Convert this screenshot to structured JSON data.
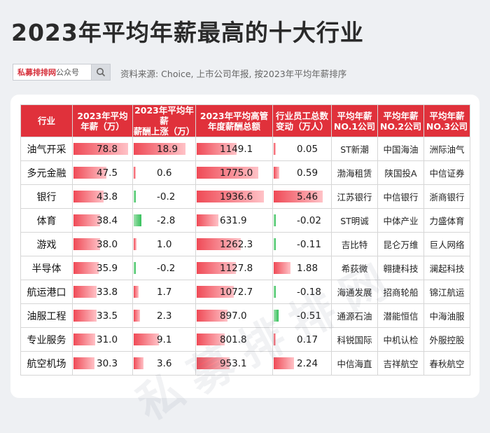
{
  "title": "2023年平均年薪最高的十大行业",
  "search": {
    "brand": "私募排排网",
    "suffix": "公众号"
  },
  "source": "资料来源: Choice, 上市公司年报, 按2023年平均年薪排序",
  "watermark": "私募排排网",
  "headers": [
    [
      "行业"
    ],
    [
      "2023年平均",
      "年薪（万）"
    ],
    [
      "2023年平均年薪",
      "薪酬上涨（万）"
    ],
    [
      "2023年平均高管",
      "年度薪酬总额"
    ],
    [
      "行业员工总数",
      "变动（万人）"
    ],
    [
      "平均年薪",
      "NO.1公司"
    ],
    [
      "平均年薪",
      "NO.2公司"
    ],
    [
      "平均年薪",
      "NO.3公司"
    ]
  ],
  "rows": [
    {
      "industry": "油气开采",
      "salary": "78.8",
      "rise": "18.9",
      "exec": "1149.1",
      "staff": "0.05",
      "no1": "ST新潮",
      "no2": "中国海油",
      "no3": "洲际油气"
    },
    {
      "industry": "多元金融",
      "salary": "47.5",
      "rise": "0.6",
      "exec": "1775.0",
      "staff": "0.59",
      "no1": "渤海租赁",
      "no2": "陕国投A",
      "no3": "中信证券"
    },
    {
      "industry": "银行",
      "salary": "43.8",
      "rise": "-0.2",
      "exec": "1936.6",
      "staff": "5.46",
      "no1": "江苏银行",
      "no2": "中信银行",
      "no3": "浙商银行"
    },
    {
      "industry": "体育",
      "salary": "38.4",
      "rise": "-2.8",
      "exec": "631.9",
      "staff": "-0.02",
      "no1": "ST明诚",
      "no2": "中体产业",
      "no3": "力盛体育"
    },
    {
      "industry": "游戏",
      "salary": "38.0",
      "rise": "1.0",
      "exec": "1262.3",
      "staff": "-0.11",
      "no1": "吉比特",
      "no2": "昆仑万维",
      "no3": "巨人网络"
    },
    {
      "industry": "半导体",
      "salary": "35.9",
      "rise": "-0.2",
      "exec": "1127.8",
      "staff": "1.88",
      "no1": "希荻微",
      "no2": "翱捷科技",
      "no3": "澜起科技"
    },
    {
      "industry": "航运港口",
      "salary": "33.8",
      "rise": "1.7",
      "exec": "1072.7",
      "staff": "-0.18",
      "no1": "海通发展",
      "no2": "招商轮船",
      "no3": "锦江航运"
    },
    {
      "industry": "油服工程",
      "salary": "33.5",
      "rise": "2.3",
      "exec": "897.0",
      "staff": "-0.51",
      "no1": "通源石油",
      "no2": "潜能恒信",
      "no3": "中海油服"
    },
    {
      "industry": "专业服务",
      "salary": "31.0",
      "rise": "9.1",
      "exec": "801.8",
      "staff": "0.17",
      "no1": "科锐国际",
      "no2": "中机认检",
      "no3": "外服控股"
    },
    {
      "industry": "航空机场",
      "salary": "30.3",
      "rise": "3.6",
      "exec": "953.1",
      "staff": "2.24",
      "no1": "中信海直",
      "no2": "吉祥航空",
      "no3": "春秋航空"
    }
  ],
  "colors": {
    "header": "#e0313b",
    "bar_positive": "#ef4a56",
    "bar_negative": "#35c15b"
  }
}
